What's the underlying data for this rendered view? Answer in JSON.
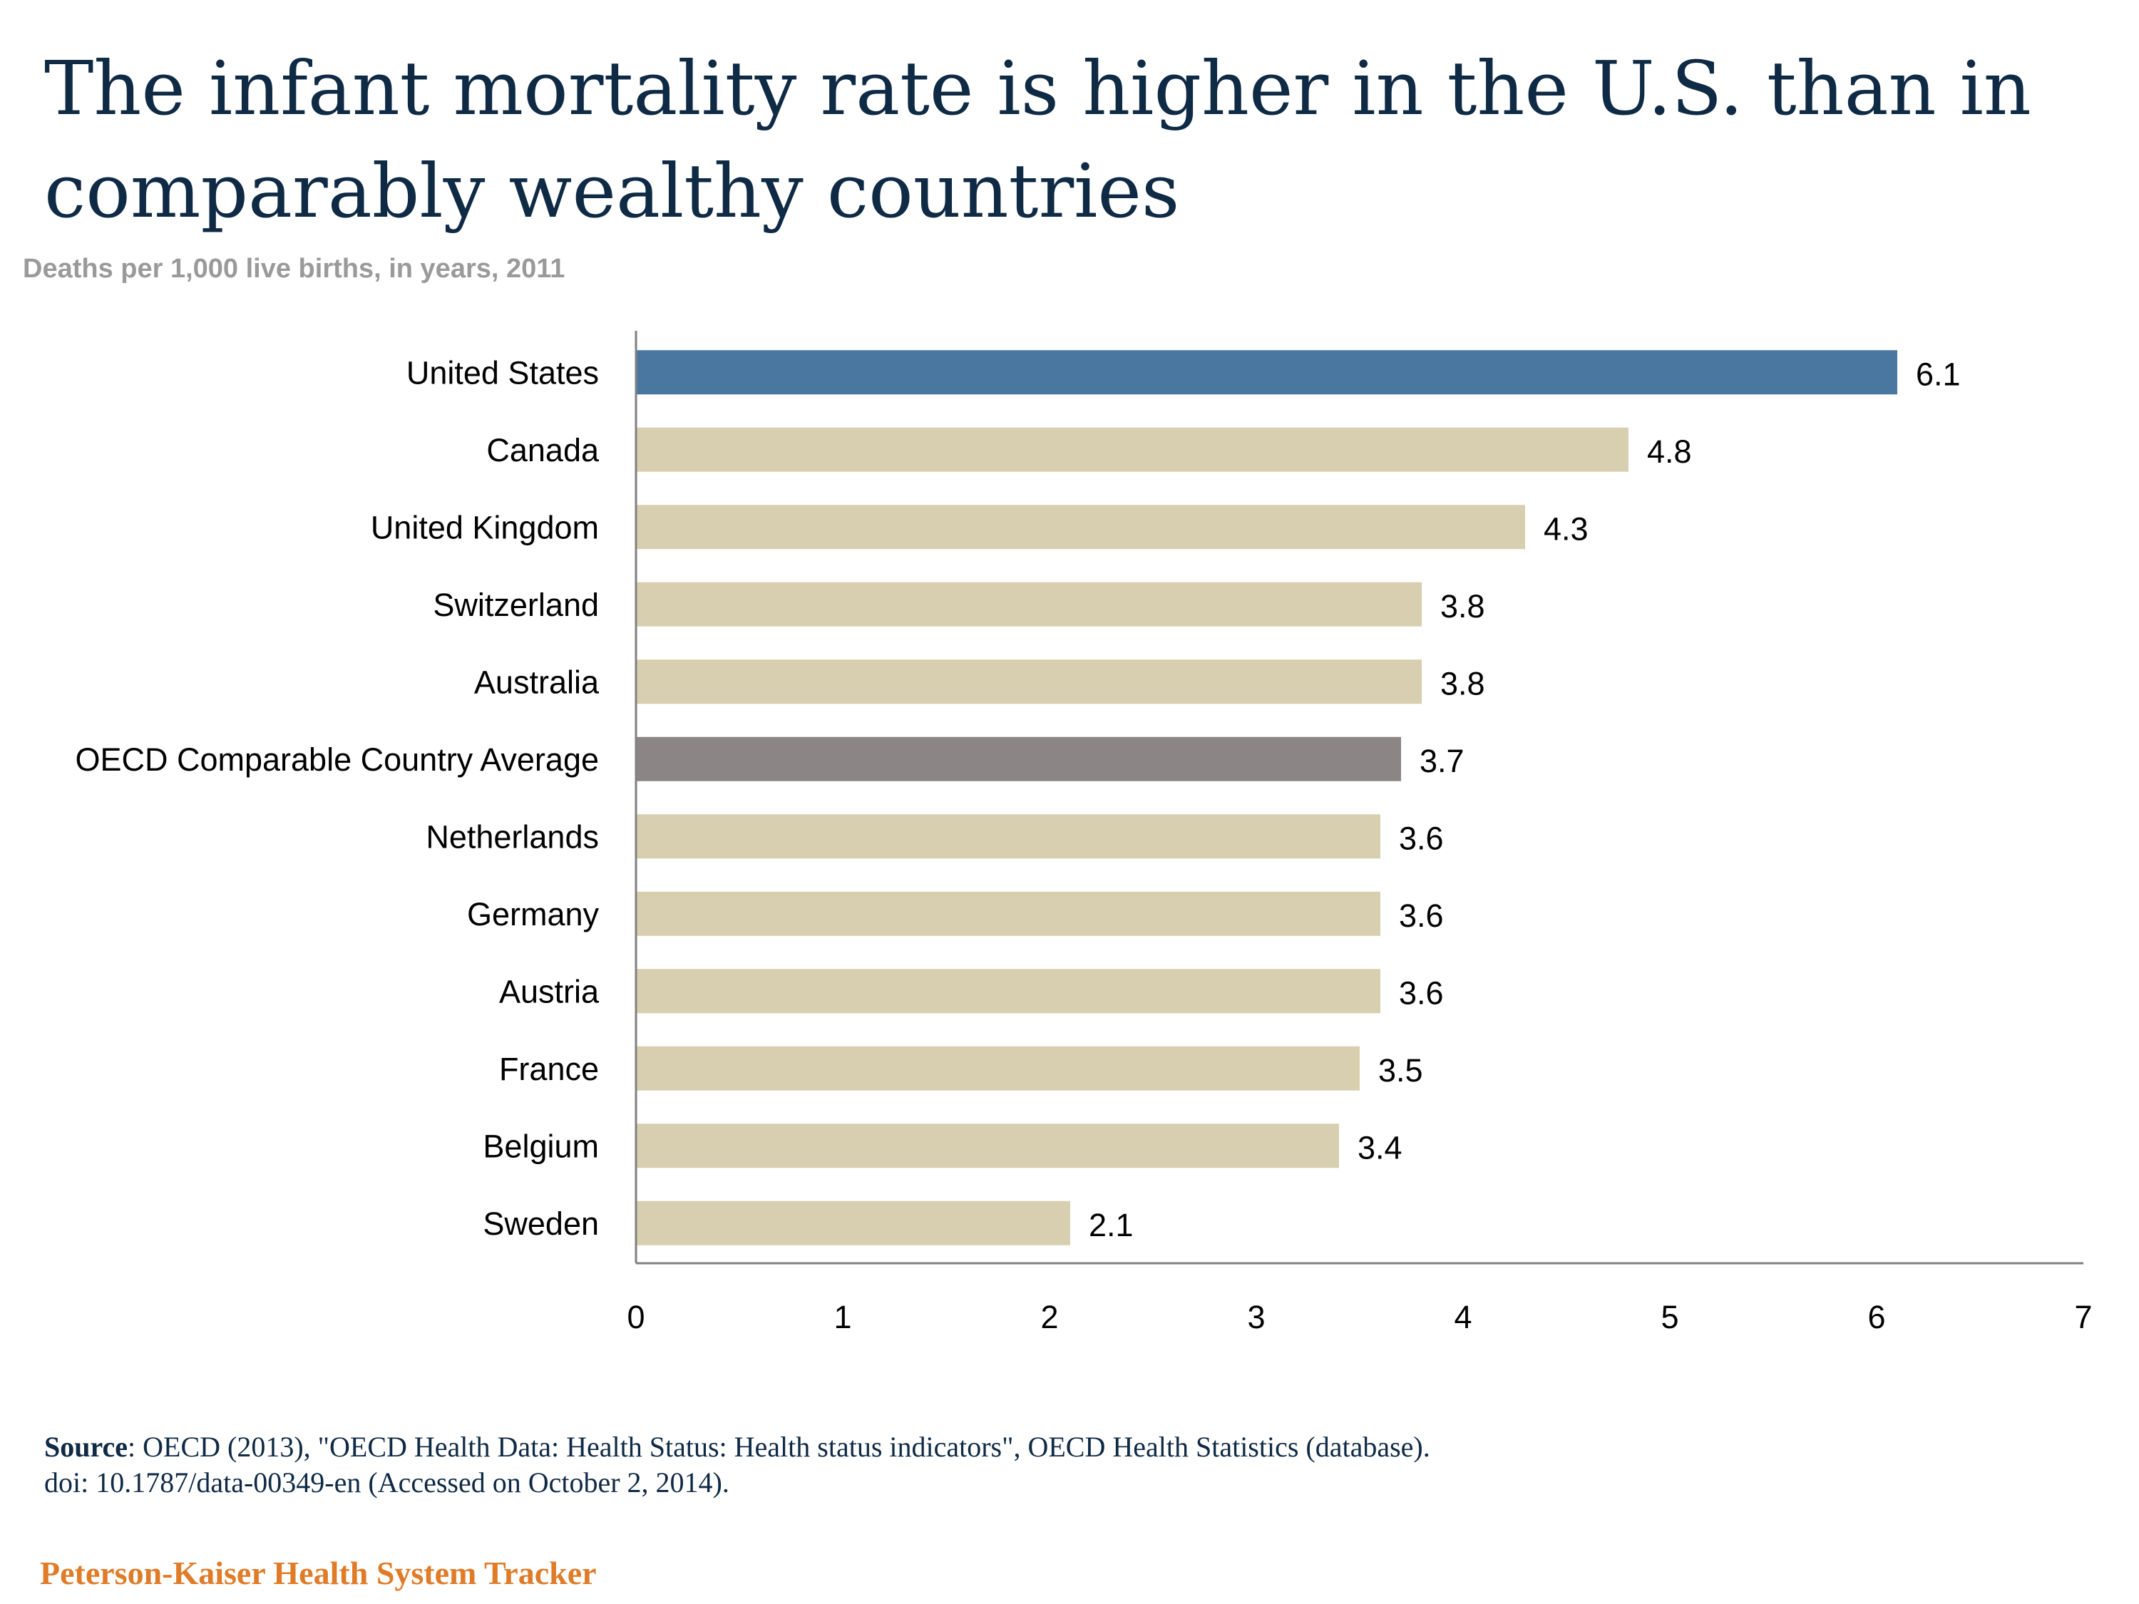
{
  "title": "The infant mortality rate is higher in the U.S. than in comparably wealthy countries",
  "subtitle": "Deaths per 1,000 live births, in years, 2011",
  "source": {
    "label": "Source",
    "text": ": OECD (2013), \"OECD Health Data: Health Status: Health status indicators\", OECD Health Statistics (database).",
    "text2": "doi: 10.1787/data-00349-en (Accessed on October 2, 2014)."
  },
  "brand": "Peterson-Kaiser Health System Tracker",
  "colors": {
    "highlight": "#4a77a0",
    "average": "#8b8585",
    "default": "#d8cfb0",
    "axis": "#808080"
  },
  "chart_data": {
    "type": "bar",
    "orientation": "horizontal",
    "categories": [
      "United States",
      "Canada",
      "United Kingdom",
      "Switzerland",
      "Australia",
      "OECD Comparable Country Average",
      "Netherlands",
      "Germany",
      "Austria",
      "France",
      "Belgium",
      "Sweden"
    ],
    "values": [
      6.1,
      4.8,
      4.3,
      3.8,
      3.8,
      3.7,
      3.6,
      3.6,
      3.6,
      3.5,
      3.4,
      2.1
    ],
    "value_labels": [
      "6.1",
      "4.8",
      "4.3",
      "3.8",
      "3.8",
      "3.7",
      "3.6",
      "3.6",
      "3.6",
      "3.5",
      "3.4",
      "2.1"
    ],
    "bar_colors": [
      "highlight",
      "default",
      "default",
      "default",
      "default",
      "average",
      "default",
      "default",
      "default",
      "default",
      "default",
      "default"
    ],
    "xlim": [
      0,
      7
    ],
    "xticks": [
      "0",
      "1",
      "2",
      "3",
      "4",
      "5",
      "6",
      "7"
    ],
    "grid": false,
    "legend": "none"
  }
}
